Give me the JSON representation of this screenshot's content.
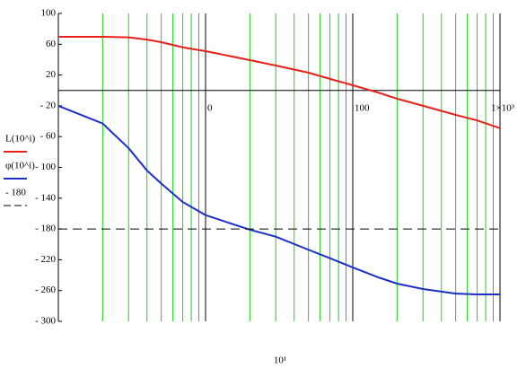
{
  "chart_data": {
    "type": "line",
    "x": [
      1,
      2,
      3,
      4,
      5,
      7,
      10,
      20,
      30,
      50,
      70,
      100,
      150,
      200,
      300,
      500,
      700,
      1000
    ],
    "series": [
      {
        "name": "L(10^i)",
        "color": "#e8201a",
        "values": [
          69.7,
          69.7,
          69,
          66,
          62.7,
          56,
          51,
          39.4,
          32.4,
          23,
          15,
          6.7,
          -3,
          -10.8,
          -20,
          -31.8,
          -39,
          -49
        ]
      },
      {
        "name": "φ(10^i)",
        "color": "#1a2fc8",
        "values": [
          -20,
          -43,
          -75,
          -104,
          -121,
          -145,
          -162,
          -181,
          -190,
          -207,
          -218,
          -230,
          -243,
          -251,
          -258,
          -264,
          -265,
          -265
        ]
      },
      {
        "name": "- 180",
        "color": "#000000",
        "dash": true,
        "values": [
          -180,
          -180,
          -180,
          -180,
          -180,
          -180,
          -180,
          -180,
          -180,
          -180,
          -180,
          -180,
          -180,
          -180,
          -180,
          -180,
          -180,
          -180
        ]
      }
    ],
    "xlim": [
      1,
      1000
    ],
    "log_x": true,
    "xticks": [
      {
        "value": 10,
        "label": "0"
      },
      100,
      {
        "value": 1000,
        "label": "1×10³"
      }
    ],
    "xminor": [
      2,
      3,
      4,
      5,
      6,
      7,
      8,
      9,
      20,
      30,
      40,
      50,
      60,
      70,
      80,
      90,
      200,
      300,
      400,
      500,
      600,
      700,
      800,
      900
    ],
    "minor_color": "#22cc22",
    "ylim": [
      -300,
      100
    ],
    "yticks": [
      100,
      60,
      20,
      {
        "value": -20,
        "label": "- 20"
      },
      {
        "value": -60,
        "label": "- 60"
      },
      {
        "value": -100,
        "label": "- 100"
      },
      {
        "value": -140,
        "label": "- 140"
      },
      {
        "value": -180,
        "label": "- 180"
      },
      {
        "value": -220,
        "label": "- 220"
      },
      {
        "value": -260,
        "label": "- 260"
      },
      {
        "value": -300,
        "label": "- 300"
      }
    ],
    "x_label": "10¹"
  }
}
